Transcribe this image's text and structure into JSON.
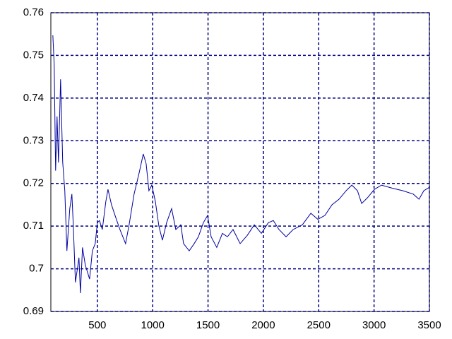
{
  "chart_data": {
    "type": "line",
    "color": "#0000a0",
    "grid": true,
    "grid_color": "#000080",
    "xlim": [
      80,
      3500
    ],
    "xticks": [
      500,
      1000,
      1500,
      2000,
      2500,
      3000,
      3500
    ],
    "ylim": [
      0.69,
      0.76
    ],
    "yticks": [
      0.69,
      0.7,
      0.71,
      0.72,
      0.73,
      0.74,
      0.75,
      0.76
    ],
    "x": [
      98,
      110,
      123,
      136,
      149,
      168,
      187,
      206,
      225,
      251,
      270,
      283,
      302,
      334,
      347,
      366,
      391,
      430,
      455,
      481,
      500,
      519,
      545,
      577,
      596,
      628,
      660,
      704,
      755,
      787,
      832,
      877,
      915,
      941,
      966,
      992,
      1024,
      1056,
      1088,
      1126,
      1171,
      1209,
      1254,
      1279,
      1330,
      1375,
      1413,
      1458,
      1496,
      1528,
      1579,
      1630,
      1675,
      1726,
      1790,
      1854,
      1918,
      1982,
      2045,
      2090,
      2141,
      2205,
      2269,
      2352,
      2429,
      2492,
      2556,
      2620,
      2684,
      2748,
      2799,
      2850,
      2888,
      2939,
      3003,
      3067,
      3163,
      3259,
      3354,
      3406,
      3450,
      3500
    ],
    "values": [
      0.7547,
      0.748,
      0.723,
      0.7357,
      0.7249,
      0.7444,
      0.725,
      0.7183,
      0.7042,
      0.7141,
      0.7175,
      0.71,
      0.6968,
      0.7026,
      0.6943,
      0.705,
      0.7009,
      0.6976,
      0.7042,
      0.7059,
      0.7108,
      0.7113,
      0.7092,
      0.7158,
      0.7186,
      0.715,
      0.7125,
      0.7092,
      0.7059,
      0.7103,
      0.7175,
      0.7224,
      0.7269,
      0.7246,
      0.7183,
      0.7196,
      0.7158,
      0.71,
      0.7067,
      0.7108,
      0.7141,
      0.7092,
      0.7103,
      0.7059,
      0.7042,
      0.7059,
      0.7075,
      0.7108,
      0.7125,
      0.7075,
      0.705,
      0.7083,
      0.7075,
      0.7092,
      0.7059,
      0.7078,
      0.7103,
      0.7083,
      0.7108,
      0.7113,
      0.7092,
      0.7075,
      0.7092,
      0.7103,
      0.713,
      0.7116,
      0.7125,
      0.715,
      0.7163,
      0.7183,
      0.7196,
      0.7183,
      0.7153,
      0.7166,
      0.7186,
      0.7196,
      0.7189,
      0.7183,
      0.7175,
      0.7163,
      0.7183,
      0.7191
    ]
  }
}
